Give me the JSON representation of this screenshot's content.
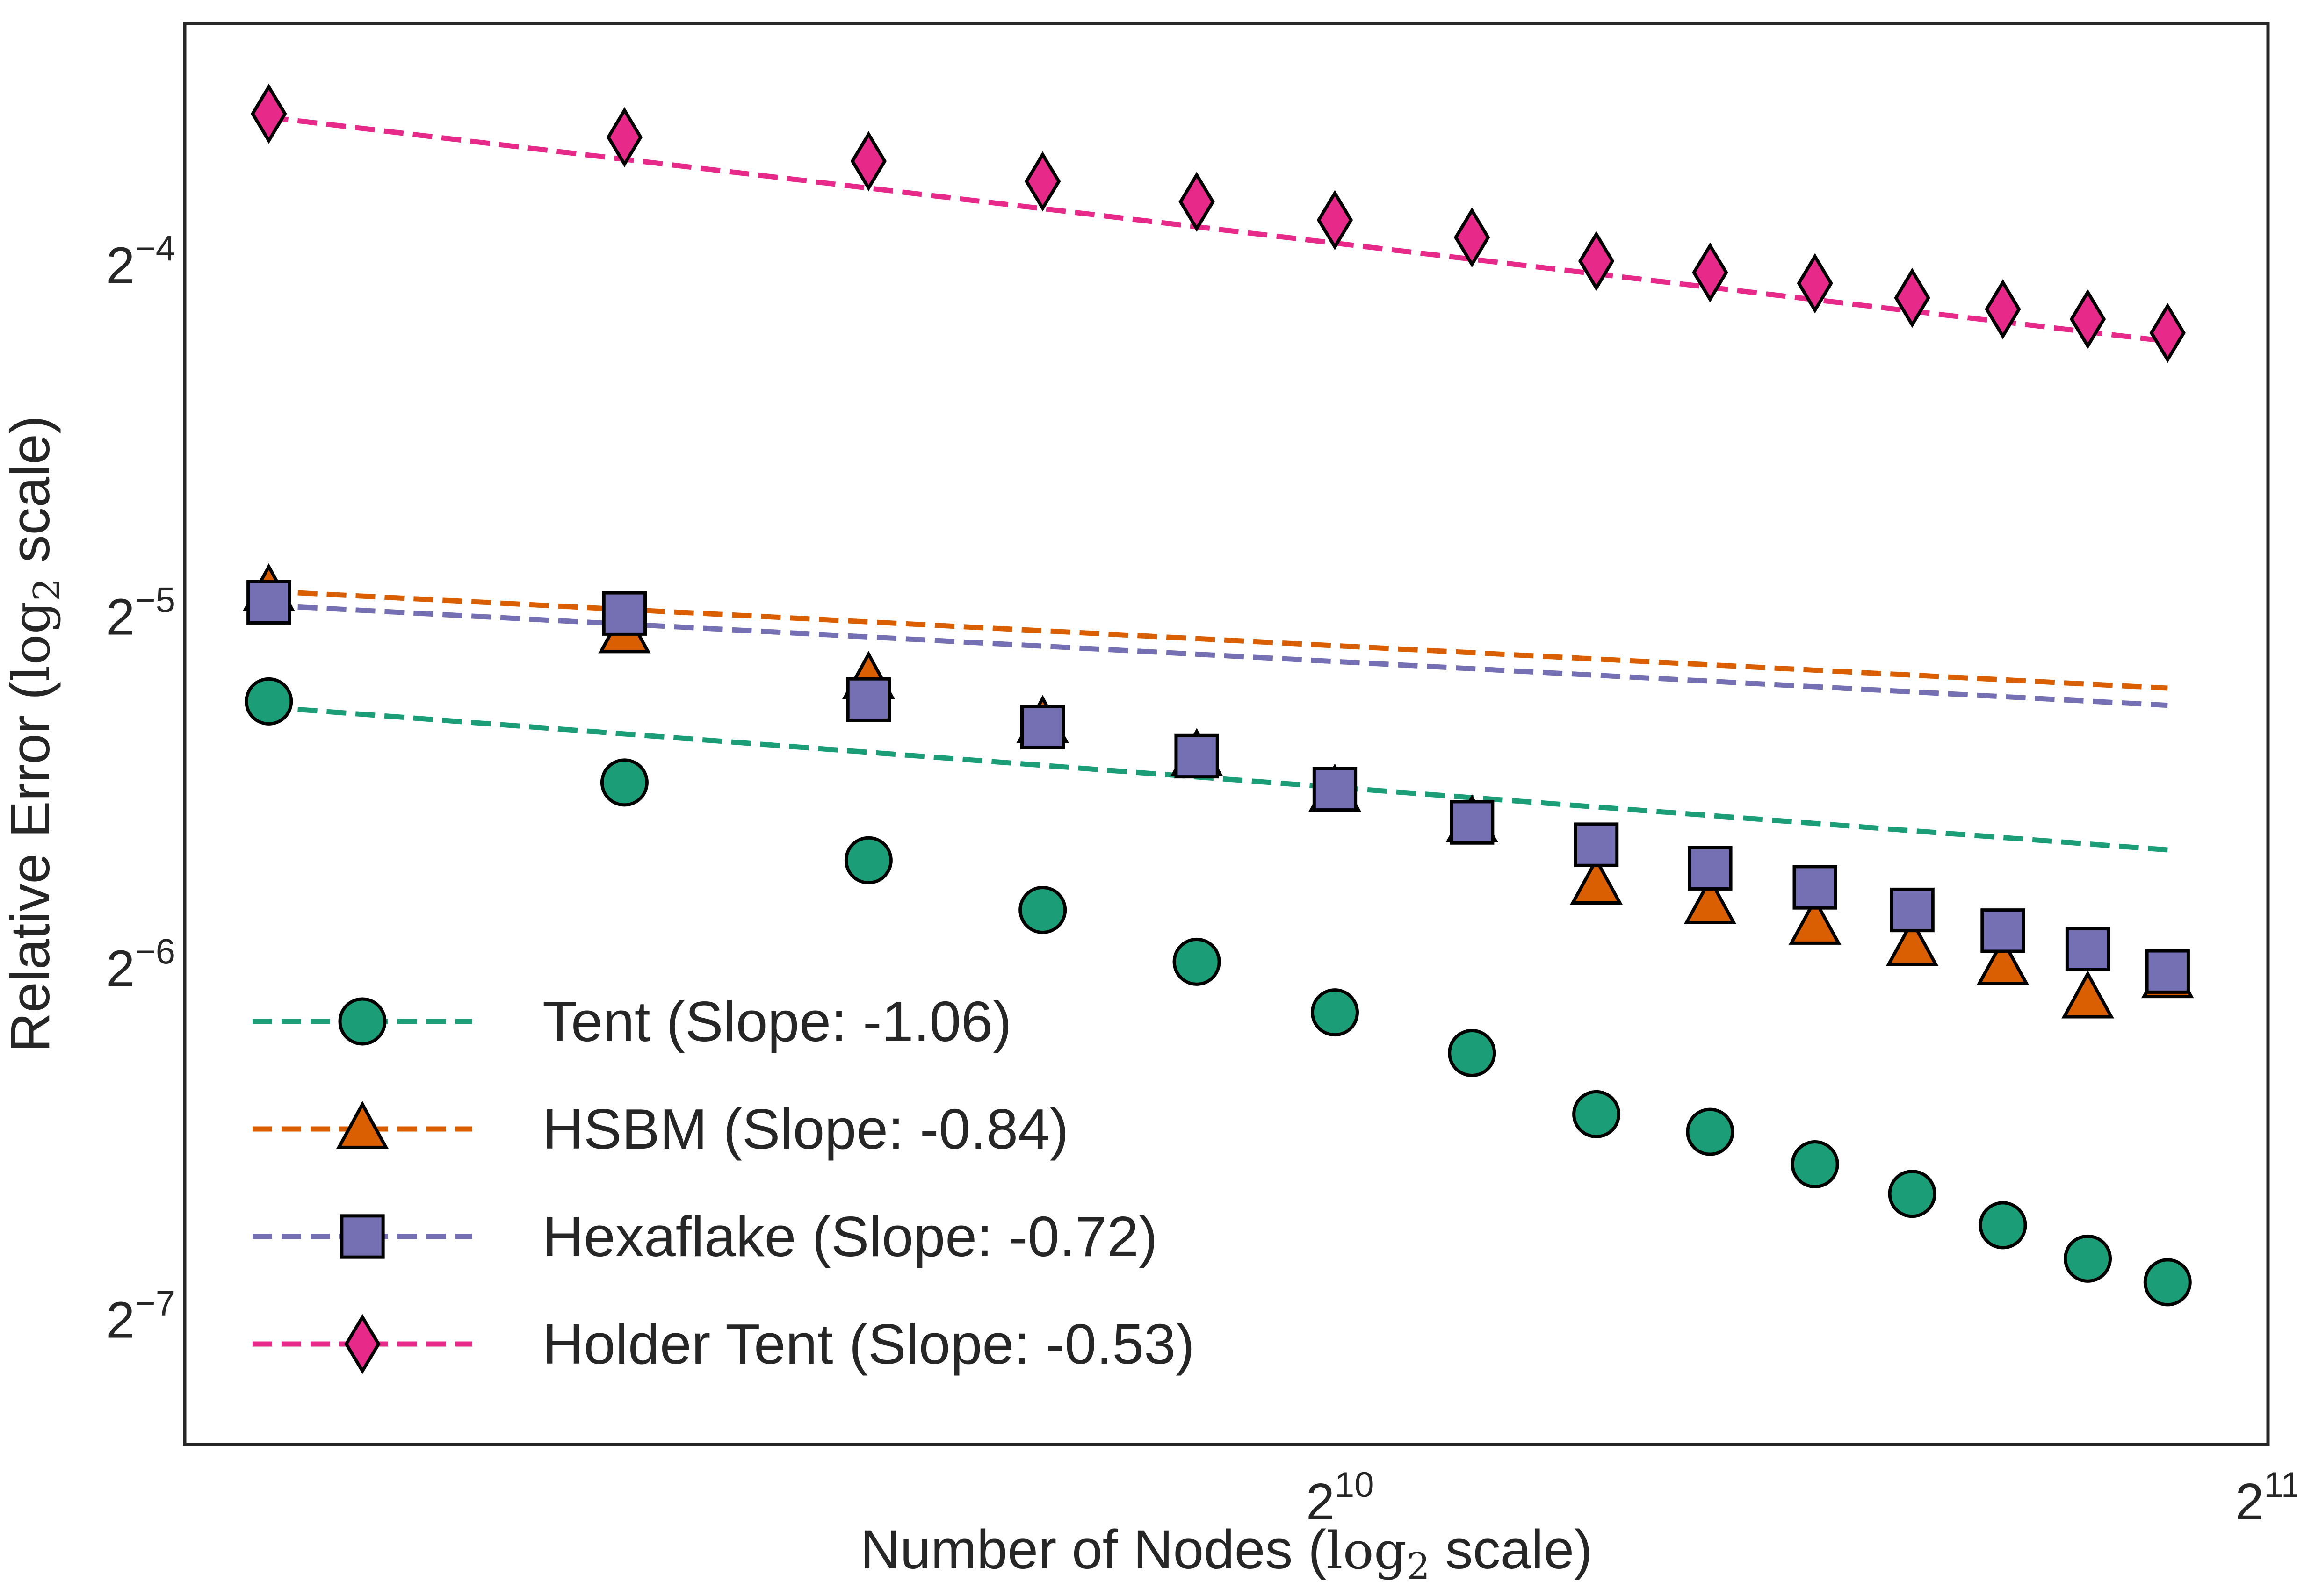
{
  "chart_data": {
    "type": "line",
    "xlabel": {
      "text_before": "Number of Nodes (",
      "math": "log",
      "sub": "2",
      "text_after": " scale)"
    },
    "ylabel": {
      "text_before": "Relative Error (",
      "math": "log",
      "sub": "2",
      "text_after": " scale)"
    },
    "xscale": "log2",
    "yscale": "log2",
    "xlim": [
      432,
      2048
    ],
    "ylim": [
      0.0061,
      0.1005
    ],
    "x_ticks": [
      {
        "value": 1024,
        "base": "2",
        "exp": "10"
      },
      {
        "value": 2048,
        "base": "2",
        "exp": "11"
      }
    ],
    "y_ticks": [
      {
        "value": 0.0625,
        "base": "2",
        "exp": "−4"
      },
      {
        "value": 0.03125,
        "base": "2",
        "exp": "−5"
      },
      {
        "value": 0.015625,
        "base": "2",
        "exp": "−6"
      },
      {
        "value": 0.0078125,
        "base": "2",
        "exp": "−7"
      }
    ],
    "grid": false,
    "legend_position": "lower-left",
    "x": [
      460,
      600,
      720,
      820,
      920,
      1020,
      1130,
      1240,
      1350,
      1460,
      1570,
      1680,
      1790,
      1900
    ],
    "series": [
      {
        "name": "Tent (Slope: -1.06)",
        "color": "#1b9e77",
        "marker": "circle",
        "values": [
          0.0264,
          0.0225,
          0.0193,
          0.0175,
          0.0158,
          0.0143,
          0.0132,
          0.0117,
          0.0113,
          0.0106,
          0.01,
          0.0094,
          0.0088,
          0.0084
        ],
        "fit": [
          0.0261,
          0.0197
        ]
      },
      {
        "name": "HSBM (Slope: -0.84)",
        "color": "#d95f02",
        "marker": "triangle",
        "values": [
          0.0328,
          0.0302,
          0.0276,
          0.0253,
          0.0237,
          0.0221,
          0.0208,
          0.0184,
          0.0177,
          0.017,
          0.0163,
          0.0157,
          0.0147,
          0.0153
        ],
        "fit": [
          0.0328,
          0.0271
        ]
      },
      {
        "name": "Hexaflake (Slope: -0.72)",
        "color": "#7570b3",
        "marker": "square",
        "values": [
          0.0321,
          0.0314,
          0.0265,
          0.0251,
          0.0237,
          0.0222,
          0.0208,
          0.0199,
          0.019,
          0.0183,
          0.0175,
          0.0168,
          0.0162,
          0.0155
        ],
        "fit": [
          0.0319,
          0.0262
        ]
      },
      {
        "name": "Holder Tent (Slope: -0.53)",
        "color": "#e7298a",
        "marker": "diamond",
        "values": [
          0.0841,
          0.0803,
          0.0766,
          0.0736,
          0.0707,
          0.0682,
          0.0659,
          0.0629,
          0.0615,
          0.0602,
          0.0585,
          0.0572,
          0.0561,
          0.0546
        ],
        "fit": [
          0.0835,
          0.0537
        ]
      }
    ]
  }
}
